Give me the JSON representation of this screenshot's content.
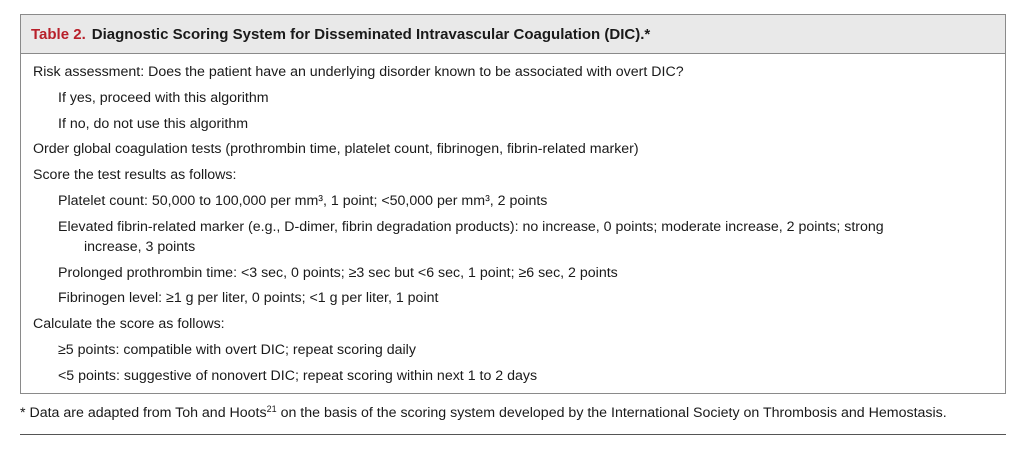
{
  "table": {
    "label": "Table 2.",
    "title": "Diagnostic Scoring System for Disseminated Intravascular Coagulation (DIC).*"
  },
  "lines": {
    "risk": "Risk assessment: Does the patient have an underlying disorder known to be associated with overt DIC?",
    "yes": "If yes, proceed with this algorithm",
    "no": "If no, do not use this algorithm",
    "order": "Order global coagulation tests (prothrombin time, platelet count, fibrinogen, fibrin-related marker)",
    "score": "Score the test results as follows:",
    "platelet": "Platelet count: 50,000 to 100,000 per mm³, 1 point; <50,000 per mm³, 2 points",
    "fibrin_a": "Elevated fibrin-related marker (e.g., D-dimer, fibrin degradation products): no increase, 0 points; moderate increase, 2 points; strong",
    "fibrin_b": "increase, 3 points",
    "pt": "Prolonged prothrombin time: <3 sec, 0 points; ≥3 sec but <6 sec, 1 point; ≥6 sec, 2 points",
    "fibrinogen": "Fibrinogen level: ≥1 g per liter, 0 points; <1 g per liter, 1 point",
    "calc": "Calculate the score as follows:",
    "overt": "≥5 points: compatible with overt DIC; repeat scoring daily",
    "nonovert": "<5 points: suggestive of nonovert DIC; repeat scoring within next 1 to 2 days"
  },
  "footnote": {
    "before": "* Data are adapted from Toh and Hoots",
    "ref": "21",
    "after": " on the basis of the scoring system developed by the International Society on Thrombosis and Hemostasis."
  },
  "colors": {
    "label_red": "#b8202a",
    "header_bg": "#e9e9e9",
    "border": "#8a8a8a"
  }
}
